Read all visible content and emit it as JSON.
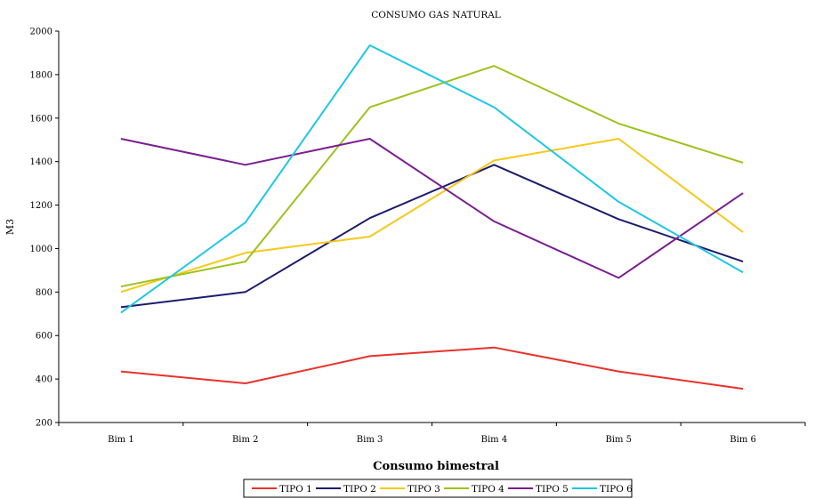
{
  "chart_data": {
    "type": "line",
    "title": "CONSUMO GAS NATURAL",
    "xlabel": "Consumo bimestral",
    "ylabel": "M3",
    "categories": [
      "Bim 1",
      "Bim 2",
      "Bim 3",
      "Bim 4",
      "Bim 5",
      "Bim 6"
    ],
    "ylim": [
      200,
      2000
    ],
    "yticks": [
      "200",
      "400",
      "600",
      "800",
      "1000",
      "1200",
      "1400",
      "1600",
      "1800",
      "2000"
    ],
    "grid": false,
    "legend_position": "bottom",
    "series": [
      {
        "name": "TIPO 1",
        "color": "#e8322b",
        "values": [
          435,
          380,
          505,
          545,
          435,
          355
        ]
      },
      {
        "name": "TIPO 2",
        "color": "#1c1c6e",
        "values": [
          730,
          800,
          1140,
          1385,
          1135,
          940
        ]
      },
      {
        "name": "TIPO 3",
        "color": "#f6c919",
        "values": [
          800,
          980,
          1055,
          1405,
          1505,
          1075
        ]
      },
      {
        "name": "TIPO 4",
        "color": "#9cc21c",
        "values": [
          825,
          940,
          1650,
          1840,
          1575,
          1395
        ]
      },
      {
        "name": "TIPO 5",
        "color": "#7a1f8f",
        "values": [
          1505,
          1385,
          1505,
          1125,
          865,
          1255
        ]
      },
      {
        "name": "TIPO 6",
        "color": "#1ec7e3",
        "values": [
          705,
          1120,
          1935,
          1650,
          1215,
          890
        ]
      }
    ]
  }
}
